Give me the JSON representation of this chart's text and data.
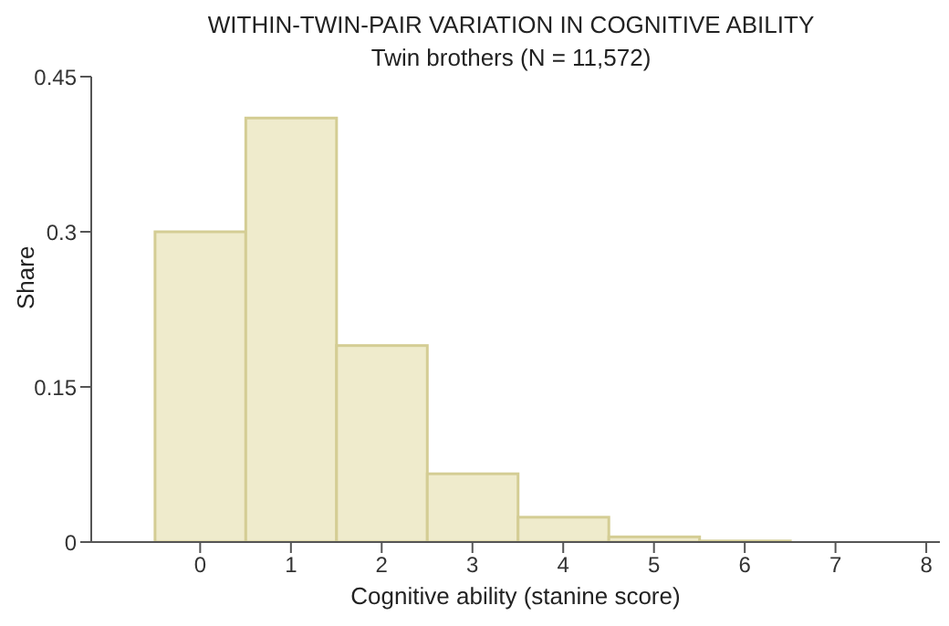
{
  "chart_data": {
    "type": "histogram",
    "title": "WITHIN-TWIN-PAIR VARIATION IN COGNITIVE ABILITY",
    "subtitle": "Twin brothers (N = 11,572)",
    "xlabel": "Cognitive ability (stanine score)",
    "ylabel": "Share",
    "bins": [
      -0.5,
      0.5,
      1.5,
      2.5,
      3.5,
      4.5,
      5.5,
      6.5
    ],
    "values": [
      0.3,
      0.41,
      0.19,
      0.066,
      0.024,
      0.005,
      0.001
    ],
    "color": "#efebcc",
    "xlim": [
      -1.2,
      8.15
    ],
    "xticks": [
      0,
      1,
      2,
      3,
      4,
      5,
      6,
      7,
      8
    ],
    "ylim": [
      0,
      0.45
    ],
    "yticks": [
      0,
      0.15,
      0.3,
      0.45
    ],
    "grid": false,
    "legend": false
  }
}
